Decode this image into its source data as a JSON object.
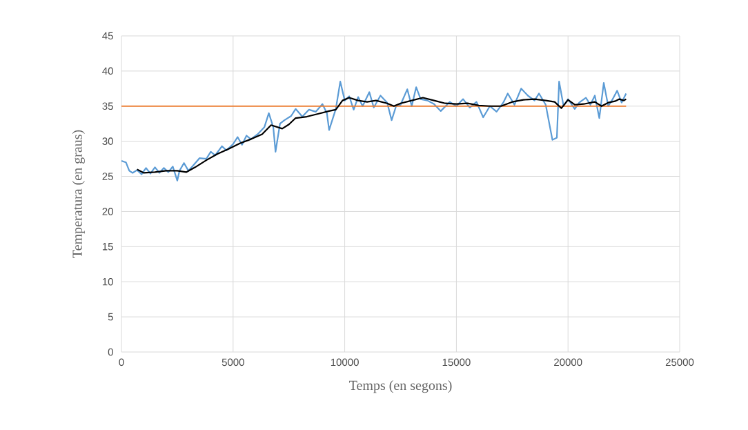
{
  "chart_data": {
    "type": "line",
    "xlabel": "Temps (en segons)",
    "ylabel": "Temperatura  (en graus)",
    "xlim": [
      0,
      25000
    ],
    "xticks": [
      0,
      5000,
      10000,
      15000,
      20000,
      25000
    ],
    "ylim": [
      0,
      45
    ],
    "yticks": [
      0,
      5,
      10,
      15,
      20,
      25,
      30,
      35,
      40,
      45
    ],
    "grid": true,
    "marker": "none",
    "line_style": "solid",
    "series": [
      {
        "color": "#5b9bd5",
        "x": [
          0,
          200,
          350,
          500,
          700,
          900,
          1100,
          1300,
          1500,
          1700,
          1900,
          2100,
          2300,
          2500,
          2600,
          2800,
          3000,
          3200,
          3500,
          3800,
          4000,
          4200,
          4500,
          4700,
          5000,
          5200,
          5400,
          5600,
          5800,
          6100,
          6400,
          6600,
          6800,
          6900,
          7100,
          7300,
          7600,
          7800,
          8100,
          8400,
          8700,
          9000,
          9200,
          9300,
          9600,
          9800,
          10000,
          10200,
          10400,
          10600,
          10800,
          11100,
          11300,
          11600,
          11900,
          12100,
          12300,
          12500,
          12800,
          13000,
          13200,
          13400,
          13700,
          14000,
          14300,
          14700,
          15000,
          15300,
          15600,
          15900,
          16200,
          16500,
          16800,
          17100,
          17300,
          17600,
          17900,
          18200,
          18500,
          18700,
          19000,
          19300,
          19500,
          19600,
          19800,
          20000,
          20300,
          20500,
          20800,
          21000,
          21200,
          21400,
          21600,
          21800,
          22000,
          22200,
          22400,
          22600
        ],
        "values": [
          27.2,
          27.0,
          25.8,
          25.5,
          25.9,
          25.3,
          26.2,
          25.4,
          26.3,
          25.5,
          26.2,
          25.6,
          26.4,
          24.4,
          25.8,
          26.9,
          25.8,
          26.5,
          27.6,
          27.5,
          28.5,
          28.0,
          29.3,
          28.7,
          29.6,
          30.6,
          29.5,
          30.8,
          30.3,
          31.0,
          32.0,
          34.0,
          32.0,
          28.5,
          32.5,
          33.0,
          33.6,
          34.6,
          33.5,
          34.5,
          34.2,
          35.3,
          34.0,
          31.6,
          34.6,
          38.5,
          35.8,
          36.4,
          34.5,
          36.3,
          35.0,
          37.0,
          34.8,
          36.5,
          35.5,
          33.0,
          35.0,
          35.2,
          37.4,
          35.0,
          37.7,
          36.0,
          35.8,
          35.3,
          34.3,
          35.6,
          35.0,
          36.0,
          34.8,
          35.6,
          33.4,
          35.0,
          34.2,
          35.5,
          36.8,
          35.2,
          37.5,
          36.5,
          35.8,
          36.8,
          35.2,
          30.2,
          30.5,
          38.5,
          35.0,
          36.0,
          34.6,
          35.5,
          36.2,
          35.2,
          36.5,
          33.3,
          38.3,
          35.0,
          36.0,
          37.2,
          35.5,
          36.8
        ]
      },
      {
        "color": "#ed7d31",
        "x": [
          0,
          22600
        ],
        "values": [
          35,
          35
        ]
      },
      {
        "color": "#000000",
        "x": [
          700,
          1000,
          1500,
          2000,
          2500,
          2900,
          3300,
          3800,
          4300,
          4800,
          5300,
          5800,
          6300,
          6700,
          7200,
          7500,
          7800,
          8300,
          8800,
          9300,
          9600,
          9900,
          10200,
          10600,
          11000,
          11400,
          11900,
          12200,
          12500,
          13000,
          13500,
          14000,
          14500,
          15000,
          15500,
          16000,
          16500,
          17000,
          17500,
          18000,
          18500,
          19000,
          19400,
          19700,
          20000,
          20300,
          20700,
          21200,
          21500,
          21800,
          22100,
          22300,
          22500,
          22600
        ],
        "values": [
          26.0,
          25.5,
          25.6,
          25.8,
          25.8,
          25.6,
          26.3,
          27.3,
          28.2,
          28.9,
          29.7,
          30.3,
          31.0,
          32.3,
          31.8,
          32.4,
          33.3,
          33.5,
          33.9,
          34.3,
          34.5,
          35.8,
          36.2,
          35.8,
          35.6,
          35.8,
          35.4,
          35.0,
          35.4,
          35.8,
          36.2,
          35.8,
          35.4,
          35.3,
          35.4,
          35.1,
          35.0,
          35.0,
          35.6,
          35.9,
          36.0,
          35.8,
          35.6,
          34.7,
          35.9,
          35.2,
          35.3,
          35.6,
          35.0,
          35.5,
          35.7,
          36.0,
          35.8,
          36.0
        ]
      }
    ]
  }
}
